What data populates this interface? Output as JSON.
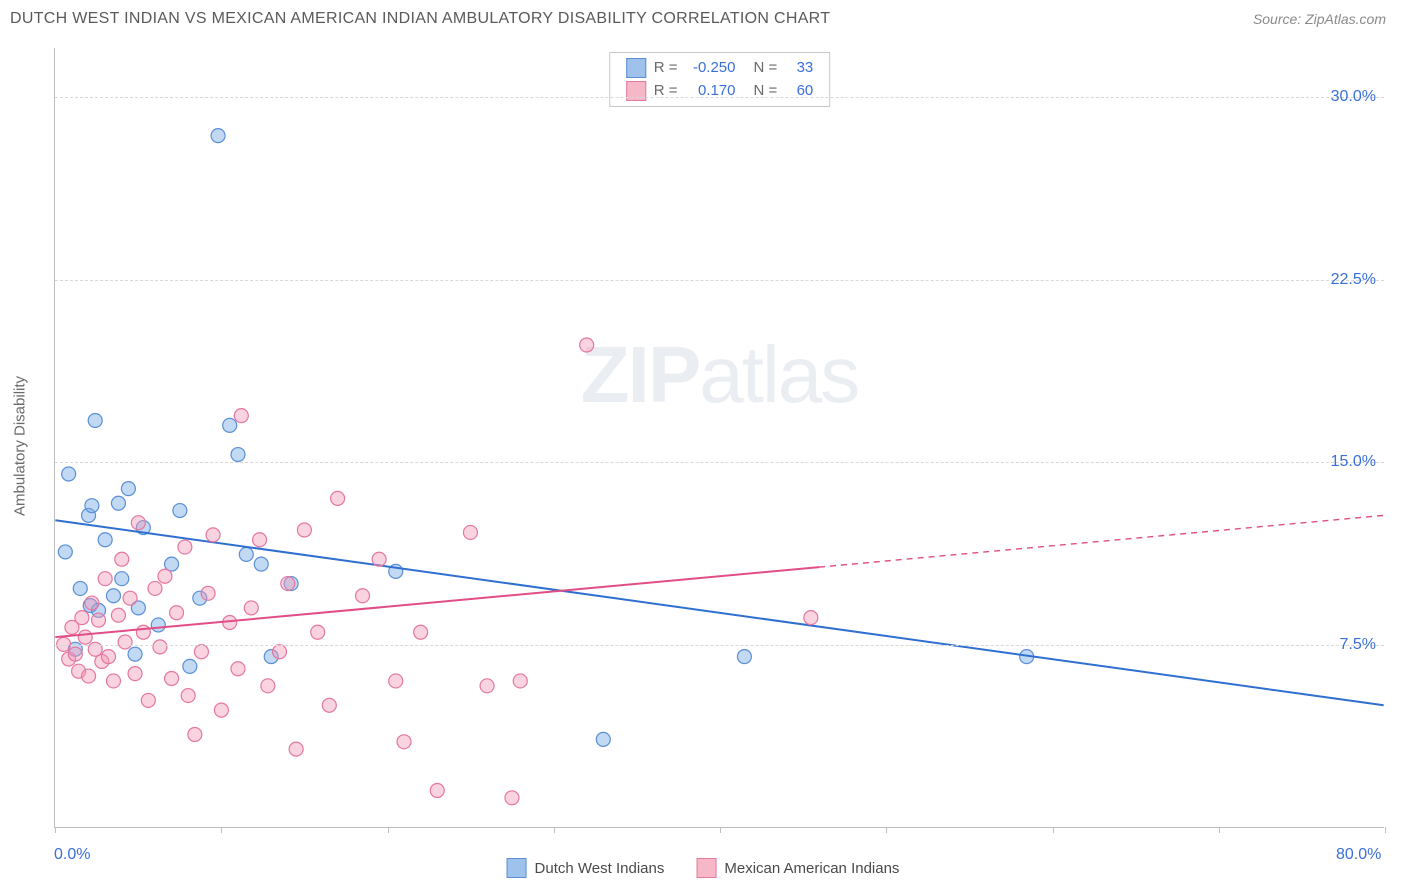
{
  "header": {
    "title": "DUTCH WEST INDIAN VS MEXICAN AMERICAN INDIAN AMBULATORY DISABILITY CORRELATION CHART",
    "source": "Source: ZipAtlas.com"
  },
  "watermark": {
    "zip": "ZIP",
    "atlas": "atlas"
  },
  "axes": {
    "ylabel": "Ambulatory Disability",
    "xlim": [
      0,
      80
    ],
    "ylim": [
      0,
      32
    ],
    "ygrid": [
      {
        "v": 7.5,
        "label": "7.5%"
      },
      {
        "v": 15.0,
        "label": "15.0%"
      },
      {
        "v": 22.5,
        "label": "22.5%"
      },
      {
        "v": 30.0,
        "label": "30.0%"
      }
    ],
    "xticks": [
      0,
      10,
      20,
      30,
      40,
      50,
      60,
      70,
      80
    ],
    "xlabel_left": {
      "v": 0,
      "text": "0.0%"
    },
    "xlabel_right": {
      "v": 80,
      "text": "80.0%"
    }
  },
  "style": {
    "background": "#ffffff",
    "grid_color": "#d8d8d8",
    "axis_color": "#bfbfbf",
    "tick_text_color": "#3a6fd8",
    "label_color": "#6a6a6a",
    "marker_radius": 7,
    "marker_stroke_width": 1.2,
    "trend_line_width": 2,
    "dash_pattern": "6 5"
  },
  "stats": {
    "r_label": "R =",
    "n_label": "N =",
    "rows": [
      {
        "swatch_fill": "#9fc2ec",
        "swatch_stroke": "#5a8fd6",
        "r": "-0.250",
        "n": "33"
      },
      {
        "swatch_fill": "#f6b8c6",
        "swatch_stroke": "#e477a0",
        "r": "0.170",
        "n": "60"
      }
    ]
  },
  "legend": {
    "items": [
      {
        "label": "Dutch West Indians",
        "fill": "#9fc2ec",
        "stroke": "#5a8fd6"
      },
      {
        "label": "Mexican American Indians",
        "fill": "#f6b8c6",
        "stroke": "#e477a0"
      }
    ]
  },
  "series": [
    {
      "name": "Dutch West Indians",
      "fill": "rgba(120,170,230,0.45)",
      "stroke": "#5a8fd6",
      "trend_color": "#2f6fd0",
      "trend": {
        "x1": 0,
        "y1": 12.6,
        "x2": 80,
        "y2": 5.0,
        "solid_until_x": 80
      },
      "points": [
        [
          0.6,
          11.3
        ],
        [
          0.8,
          14.5
        ],
        [
          1.2,
          7.3
        ],
        [
          1.5,
          9.8
        ],
        [
          2.0,
          12.8
        ],
        [
          2.1,
          9.1
        ],
        [
          2.2,
          13.2
        ],
        [
          2.4,
          16.7
        ],
        [
          2.6,
          8.9
        ],
        [
          3.0,
          11.8
        ],
        [
          3.5,
          9.5
        ],
        [
          3.8,
          13.3
        ],
        [
          4.0,
          10.2
        ],
        [
          4.4,
          13.9
        ],
        [
          4.8,
          7.1
        ],
        [
          5.0,
          9.0
        ],
        [
          5.3,
          12.3
        ],
        [
          6.2,
          8.3
        ],
        [
          7.0,
          10.8
        ],
        [
          7.5,
          13.0
        ],
        [
          8.1,
          6.6
        ],
        [
          8.7,
          9.4
        ],
        [
          9.8,
          28.4
        ],
        [
          10.5,
          16.5
        ],
        [
          11.0,
          15.3
        ],
        [
          11.5,
          11.2
        ],
        [
          12.4,
          10.8
        ],
        [
          13.0,
          7.0
        ],
        [
          14.2,
          10.0
        ],
        [
          20.5,
          10.5
        ],
        [
          33.0,
          3.6
        ],
        [
          41.5,
          7.0
        ],
        [
          58.5,
          7.0
        ]
      ]
    },
    {
      "name": "Mexican American Indians",
      "fill": "rgba(243,150,180,0.42)",
      "stroke": "#e477a0",
      "trend_color": "#e14d86",
      "trend": {
        "x1": 0,
        "y1": 7.8,
        "x2": 80,
        "y2": 12.8,
        "solid_until_x": 46
      },
      "points": [
        [
          0.5,
          7.5
        ],
        [
          0.8,
          6.9
        ],
        [
          1.0,
          8.2
        ],
        [
          1.2,
          7.1
        ],
        [
          1.4,
          6.4
        ],
        [
          1.6,
          8.6
        ],
        [
          1.8,
          7.8
        ],
        [
          2.0,
          6.2
        ],
        [
          2.2,
          9.2
        ],
        [
          2.4,
          7.3
        ],
        [
          2.6,
          8.5
        ],
        [
          2.8,
          6.8
        ],
        [
          3.0,
          10.2
        ],
        [
          3.2,
          7.0
        ],
        [
          3.5,
          6.0
        ],
        [
          3.8,
          8.7
        ],
        [
          4.0,
          11.0
        ],
        [
          4.2,
          7.6
        ],
        [
          4.5,
          9.4
        ],
        [
          4.8,
          6.3
        ],
        [
          5.0,
          12.5
        ],
        [
          5.3,
          8.0
        ],
        [
          5.6,
          5.2
        ],
        [
          6.0,
          9.8
        ],
        [
          6.3,
          7.4
        ],
        [
          6.6,
          10.3
        ],
        [
          7.0,
          6.1
        ],
        [
          7.3,
          8.8
        ],
        [
          7.8,
          11.5
        ],
        [
          8.0,
          5.4
        ],
        [
          8.4,
          3.8
        ],
        [
          8.8,
          7.2
        ],
        [
          9.2,
          9.6
        ],
        [
          9.5,
          12.0
        ],
        [
          10.0,
          4.8
        ],
        [
          10.5,
          8.4
        ],
        [
          11.0,
          6.5
        ],
        [
          11.2,
          16.9
        ],
        [
          11.8,
          9.0
        ],
        [
          12.3,
          11.8
        ],
        [
          12.8,
          5.8
        ],
        [
          13.5,
          7.2
        ],
        [
          14.0,
          10.0
        ],
        [
          14.5,
          3.2
        ],
        [
          15.0,
          12.2
        ],
        [
          15.8,
          8.0
        ],
        [
          16.5,
          5.0
        ],
        [
          17.0,
          13.5
        ],
        [
          18.5,
          9.5
        ],
        [
          19.5,
          11.0
        ],
        [
          20.5,
          6.0
        ],
        [
          21.0,
          3.5
        ],
        [
          22.0,
          8.0
        ],
        [
          23.0,
          1.5
        ],
        [
          25.0,
          12.1
        ],
        [
          26.0,
          5.8
        ],
        [
          27.5,
          1.2
        ],
        [
          28.0,
          6.0
        ],
        [
          32.0,
          19.8
        ],
        [
          45.5,
          8.6
        ]
      ]
    }
  ]
}
